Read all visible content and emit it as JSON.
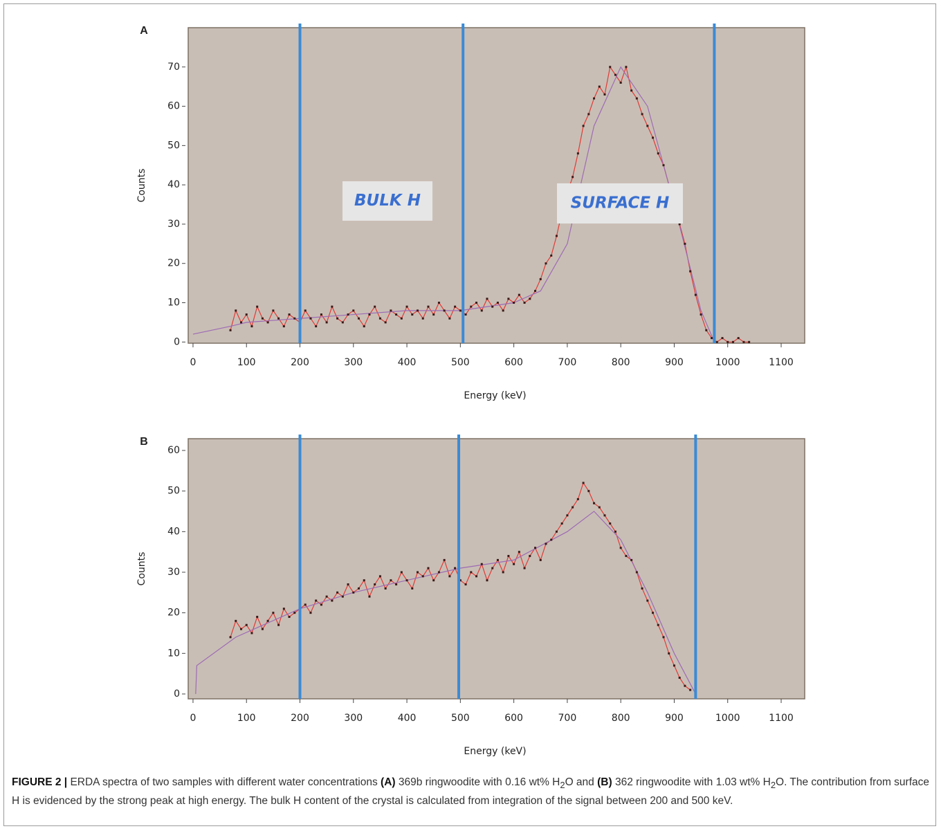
{
  "chart_data": [
    {
      "type": "line",
      "panel": "A",
      "xlabel": "Energy (keV)",
      "ylabel": "Counts",
      "x": [
        70,
        80,
        90,
        100,
        110,
        120,
        130,
        140,
        150,
        160,
        170,
        180,
        190,
        200,
        210,
        220,
        230,
        240,
        250,
        260,
        270,
        280,
        290,
        300,
        310,
        320,
        330,
        340,
        350,
        360,
        370,
        380,
        390,
        400,
        410,
        420,
        430,
        440,
        450,
        460,
        470,
        480,
        490,
        500,
        510,
        520,
        530,
        540,
        550,
        560,
        570,
        580,
        590,
        600,
        610,
        620,
        630,
        640,
        650,
        660,
        670,
        680,
        690,
        700,
        710,
        720,
        730,
        740,
        750,
        760,
        770,
        780,
        790,
        800,
        810,
        820,
        830,
        840,
        850,
        860,
        870,
        880,
        890,
        900,
        910,
        920,
        930,
        940,
        950,
        960,
        970,
        980,
        990,
        1000,
        1010,
        1020,
        1030,
        1040
      ],
      "values": [
        3,
        8,
        5,
        7,
        4,
        9,
        6,
        5,
        8,
        6,
        4,
        7,
        6,
        5,
        8,
        6,
        4,
        7,
        5,
        9,
        6,
        5,
        7,
        8,
        6,
        4,
        7,
        9,
        6,
        5,
        8,
        7,
        6,
        9,
        7,
        8,
        6,
        9,
        7,
        10,
        8,
        6,
        9,
        8,
        7,
        9,
        10,
        8,
        11,
        9,
        10,
        8,
        11,
        10,
        12,
        10,
        11,
        13,
        16,
        20,
        22,
        27,
        33,
        38,
        42,
        48,
        55,
        58,
        62,
        65,
        63,
        70,
        68,
        66,
        70,
        64,
        62,
        58,
        55,
        52,
        48,
        45,
        40,
        36,
        30,
        25,
        18,
        12,
        7,
        3,
        1,
        0,
        1,
        0,
        0,
        1,
        0,
        0
      ],
      "color": "#e03a35",
      "fit_x": [
        0,
        70,
        100,
        200,
        300,
        400,
        500,
        600,
        650,
        700,
        750,
        800,
        850,
        900,
        950,
        975
      ],
      "fit_values": [
        2,
        4,
        5,
        6,
        7,
        8,
        8,
        10,
        13,
        25,
        55,
        70,
        60,
        35,
        8,
        0
      ],
      "fit_color": "#9d6bb5",
      "markers": [
        200,
        505,
        975
      ],
      "marker_color": "#3b8bd6",
      "annotations": [
        "BULK H",
        "SURFACE H"
      ],
      "xlim": [
        -9,
        1144
      ],
      "ylim": [
        -0.3,
        80
      ],
      "xticks": [
        0,
        100,
        200,
        300,
        400,
        500,
        600,
        700,
        800,
        900,
        1000,
        1100
      ],
      "yticks": [
        0,
        10,
        20,
        30,
        40,
        50,
        60,
        70
      ]
    },
    {
      "type": "line",
      "panel": "B",
      "xlabel": "Energy (keV)",
      "ylabel": "Counts",
      "x": [
        70,
        80,
        90,
        100,
        110,
        120,
        130,
        140,
        150,
        160,
        170,
        180,
        190,
        200,
        210,
        220,
        230,
        240,
        250,
        260,
        270,
        280,
        290,
        300,
        310,
        320,
        330,
        340,
        350,
        360,
        370,
        380,
        390,
        400,
        410,
        420,
        430,
        440,
        450,
        460,
        470,
        480,
        490,
        500,
        510,
        520,
        530,
        540,
        550,
        560,
        570,
        580,
        590,
        600,
        610,
        620,
        630,
        640,
        650,
        660,
        670,
        680,
        690,
        700,
        710,
        720,
        730,
        740,
        750,
        760,
        770,
        780,
        790,
        800,
        810,
        820,
        830,
        840,
        850,
        860,
        870,
        880,
        890,
        900,
        910,
        920,
        930
      ],
      "values": [
        14,
        18,
        16,
        17,
        15,
        19,
        16,
        18,
        20,
        17,
        21,
        19,
        20,
        21,
        22,
        20,
        23,
        22,
        24,
        23,
        25,
        24,
        27,
        25,
        26,
        28,
        24,
        27,
        29,
        26,
        28,
        27,
        30,
        28,
        26,
        30,
        29,
        31,
        28,
        30,
        33,
        29,
        31,
        28,
        27,
        30,
        29,
        32,
        28,
        31,
        33,
        30,
        34,
        32,
        35,
        31,
        34,
        36,
        33,
        37,
        38,
        40,
        42,
        44,
        46,
        48,
        52,
        50,
        47,
        46,
        44,
        42,
        40,
        36,
        34,
        33,
        30,
        26,
        23,
        20,
        17,
        14,
        10,
        7,
        4,
        2,
        1
      ],
      "color": "#e03a35",
      "fit_x": [
        5,
        7,
        80,
        200,
        300,
        400,
        500,
        600,
        700,
        750,
        800,
        850,
        900,
        940
      ],
      "fit_values": [
        0,
        7,
        14,
        21,
        25,
        28,
        31,
        33,
        40,
        45,
        38,
        25,
        10,
        0
      ],
      "fit_color": "#9d6bb5",
      "markers": [
        200,
        497,
        940
      ],
      "marker_color": "#3b8bd6",
      "annotations": [],
      "xlim": [
        -9,
        1144
      ],
      "ylim": [
        -1.2,
        62.9
      ],
      "xticks": [
        0,
        100,
        200,
        300,
        400,
        500,
        600,
        700,
        800,
        900,
        1000,
        1100
      ],
      "yticks": [
        0,
        10,
        20,
        30,
        40,
        50,
        60
      ]
    }
  ],
  "caption": [
    "FIGURE 2 |",
    "ERDA spectra of two samples with different water concentrations",
    "(A)",
    "369b ringwoodite with 0.16 wt% H",
    "2",
    "O and",
    "(B)",
    "362 ringwoodite with 1.03 wt% H",
    "2",
    "O. The contribution from surface H is evidenced by the strong peak at high energy. The bulk H content of the crystal is calculated from integration of the signal between 200 and 500 keV."
  ]
}
